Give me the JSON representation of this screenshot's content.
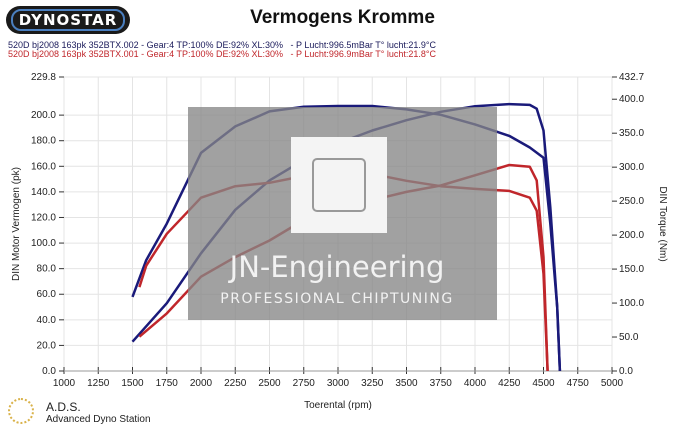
{
  "header": {
    "brand": "DYNOSTAR",
    "title": "Vermogens Kromme"
  },
  "runs": [
    {
      "label": "520D bj2008 163pk 352BTX.002 - Gear:4 TP:100% DE:92% XL:30%   - P Lucht:996.5mBar T° lucht:21.9°C",
      "color": "#1a1a7a"
    },
    {
      "label": "520D bj2008 163pk 352BTX.001 - Gear:4 TP:100% DE:92% XL:30%   - P Lucht:996.9mBar T° lucht:21.8°C",
      "color": "#c0262b"
    }
  ],
  "watermark": {
    "line1": "JN-Engineering",
    "line2": "PROFESSIONAL CHIPTUNING"
  },
  "footer": {
    "ads": "A.D.S.",
    "ads_full": "Advanced Dyno Station"
  },
  "chart_data": {
    "type": "line",
    "title": "Vermogens Kromme",
    "xlabel": "Toerental (rpm)",
    "ylabel": "DIN Motor Vermogen (pk)",
    "y2label": "DIN Torque (Nm)",
    "xlim": [
      1000,
      5000
    ],
    "ylim": [
      0,
      229.8
    ],
    "y2lim": [
      0,
      432.7
    ],
    "xticks": [
      "1000",
      "1250",
      "1500",
      "1750",
      "2000",
      "2250",
      "2500",
      "2750",
      "3000",
      "3250",
      "3500",
      "3750",
      "4000",
      "4250",
      "4500",
      "4750",
      "5000"
    ],
    "yticks": [
      "0.0",
      "20.0",
      "40.0",
      "60.0",
      "80.0",
      "100.0",
      "120.0",
      "140.0",
      "160.0",
      "180.0",
      "200.0",
      "229.8"
    ],
    "y2ticks": [
      "0.0",
      "50.0",
      "100.0",
      "150.0",
      "200.0",
      "250.0",
      "300.0",
      "350.0",
      "400.0",
      "432.7"
    ],
    "grid": true,
    "series": [
      {
        "name": "352BTX.002 Vermogen",
        "axis": "left",
        "color": "#1a1a7a",
        "x": [
          1500,
          1750,
          2000,
          2250,
          2500,
          2750,
          3000,
          3250,
          3500,
          3750,
          4000,
          4250,
          4400,
          4450,
          4500,
          4550,
          4600,
          4620
        ],
        "y": [
          22.9,
          53,
          92,
          126,
          149,
          165,
          178,
          188,
          196,
          202.6,
          207,
          208.6,
          208,
          205,
          188,
          128,
          50,
          0
        ]
      },
      {
        "name": "352BTX.002 Torque",
        "axis": "right",
        "color": "#1a1a7a",
        "x": [
          1500,
          1600,
          1750,
          2000,
          2250,
          2500,
          2750,
          3000,
          3250,
          3500,
          3750,
          4000,
          4250,
          4400,
          4500,
          4550,
          4600,
          4620
        ],
        "y": [
          109,
          163,
          217,
          321,
          360,
          382,
          389,
          390,
          390,
          385,
          377,
          363,
          346,
          329,
          314,
          217,
          94,
          0
        ]
      },
      {
        "name": "352BTX.001 Vermogen",
        "axis": "left",
        "color": "#c0262b",
        "x": [
          1550,
          1750,
          2000,
          2250,
          2500,
          2750,
          3000,
          3250,
          3500,
          3750,
          4000,
          4250,
          4400,
          4450,
          4500,
          4530
        ],
        "y": [
          26.8,
          45,
          73.7,
          89,
          102,
          118,
          126,
          133.6,
          140,
          145,
          153,
          161,
          159.6,
          149,
          89,
          0
        ]
      },
      {
        "name": "352BTX.001 Torque",
        "axis": "right",
        "color": "#c0262b",
        "x": [
          1550,
          1600,
          1750,
          2000,
          2250,
          2500,
          2750,
          3000,
          3250,
          3500,
          3750,
          4000,
          4250,
          4400,
          4450,
          4500,
          4530
        ],
        "y": [
          123.5,
          155,
          202,
          255,
          272,
          277,
          287,
          297,
          290,
          280,
          272,
          268,
          265,
          255,
          236,
          143,
          0
        ]
      }
    ]
  }
}
